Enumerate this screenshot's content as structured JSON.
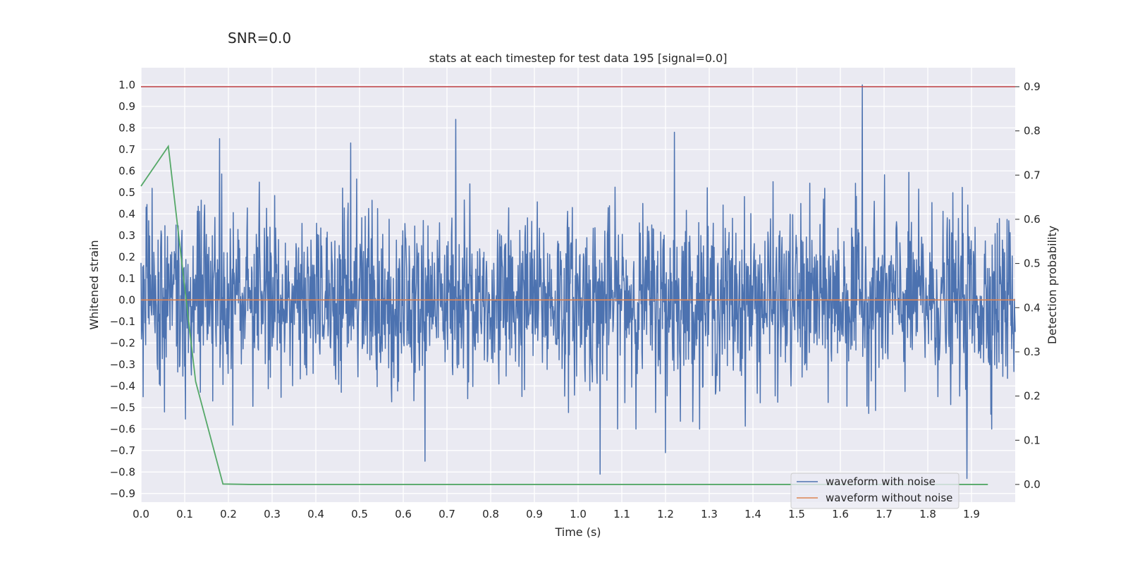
{
  "chart_data": {
    "type": "line",
    "suptitle": "SNR=0.0",
    "title": "stats at each timestep for test data 195 [signal=0.0]",
    "xlabel": "Time (s)",
    "ylabel": "Whitened strain",
    "y2label": "Detection probability",
    "xlim": [
      0.0,
      2.0
    ],
    "ylim": [
      -0.94,
      1.08
    ],
    "y2lim": [
      -0.04,
      0.943
    ],
    "x_ticks": [
      "0.0",
      "0.1",
      "0.2",
      "0.3",
      "0.4",
      "0.5",
      "0.6",
      "0.7",
      "0.8",
      "0.9",
      "1.0",
      "1.1",
      "1.2",
      "1.3",
      "1.4",
      "1.5",
      "1.6",
      "1.7",
      "1.8",
      "1.9"
    ],
    "y_ticks": [
      "1.0",
      "0.9",
      "0.8",
      "0.7",
      "0.6",
      "0.5",
      "0.4",
      "0.3",
      "0.2",
      "0.1",
      "0.0",
      "−0.1",
      "−0.2",
      "−0.3",
      "−0.4",
      "−0.5",
      "−0.6",
      "−0.7",
      "−0.8",
      "−0.9"
    ],
    "y2_ticks": [
      "0.9",
      "0.8",
      "0.7",
      "0.6",
      "0.5",
      "0.4",
      "0.3",
      "0.2",
      "0.1",
      "0.0"
    ],
    "grid": true,
    "legend_position": "lower-right",
    "series": [
      {
        "name": "waveform with noise",
        "axis": "left",
        "color": "#4c72b0",
        "samples": 2048,
        "noise_std": 0.2,
        "peaks": [
          {
            "x": 1.65,
            "y": 1.0
          },
          {
            "x": 0.72,
            "y": 0.84
          },
          {
            "x": 1.22,
            "y": 0.78
          },
          {
            "x": 0.18,
            "y": 0.75
          },
          {
            "x": 0.48,
            "y": 0.73
          },
          {
            "x": 1.05,
            "y": -0.81
          },
          {
            "x": 1.89,
            "y": -0.83
          },
          {
            "x": 0.65,
            "y": -0.75
          },
          {
            "x": 1.2,
            "y": -0.71
          }
        ]
      },
      {
        "name": "waveform without noise",
        "axis": "left",
        "color": "#dd8452",
        "constant": 0.0
      },
      {
        "name": "",
        "axis": "right",
        "color": "#55a868",
        "x": [
          0.0,
          0.0625,
          0.125,
          0.1875,
          0.25,
          0.5,
          0.75,
          1.0,
          1.25,
          1.5,
          1.75,
          1.9375
        ],
        "values": [
          0.675,
          0.765,
          0.233,
          0.001,
          0.0,
          0.0,
          0.0,
          0.0,
          0.0,
          0.0,
          0.0,
          0.0
        ]
      },
      {
        "name": "",
        "axis": "right",
        "color": "#c44e52",
        "constant": 0.9
      }
    ]
  }
}
